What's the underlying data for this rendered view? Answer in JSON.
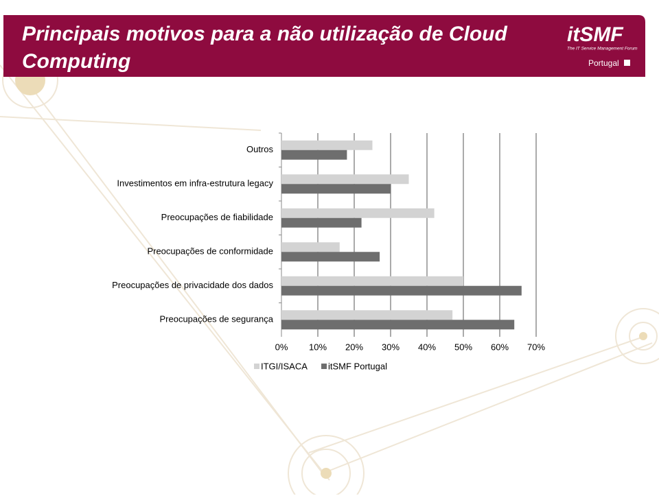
{
  "header": {
    "logo": "itSMF",
    "logo_subtitle": "The IT Service Management Forum",
    "region": "Portugal"
  },
  "chart_data": {
    "type": "hbar",
    "title": "Principais motivos para a não utilização de Cloud Computing",
    "categories": [
      "Outros",
      "Investimentos em infra-estrutura legacy",
      "Preocupações de fiabilidade",
      "Preocupações de conformidade",
      "Preocupações de privacidade dos dados",
      "Preocupações de segurança"
    ],
    "series": [
      {
        "name": "ITGI/ISACA",
        "color": "#d3d3d3",
        "values": [
          25,
          35,
          42,
          16,
          50,
          47
        ]
      },
      {
        "name": "itSMF Portugal",
        "color": "#6e6e6e",
        "values": [
          18,
          30,
          22,
          27,
          66,
          64
        ]
      }
    ],
    "xlim": [
      0,
      70
    ],
    "xticks": [
      {
        "value": 0,
        "label": "0%"
      },
      {
        "value": 10,
        "label": "10%"
      },
      {
        "value": 20,
        "label": "20%"
      },
      {
        "value": 30,
        "label": "30%"
      },
      {
        "value": 40,
        "label": "40%"
      },
      {
        "value": 50,
        "label": "50%"
      },
      {
        "value": 60,
        "label": "60%"
      },
      {
        "value": 70,
        "label": "70%"
      }
    ],
    "grid": true,
    "legend": "bottom"
  }
}
